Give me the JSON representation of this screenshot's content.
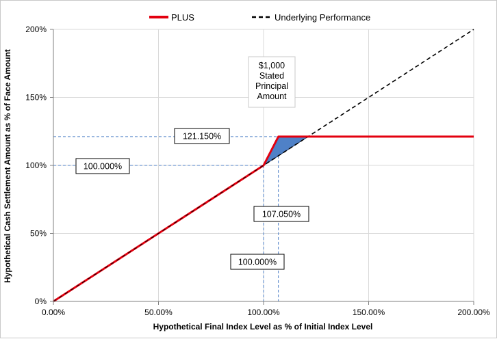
{
  "chart_data": {
    "type": "line",
    "title": "",
    "xlabel": "Hypothetical Final Index Level as % of Initial Index Level",
    "ylabel": "Hypothetical Cash Settlement Amount as % of Face Amount",
    "xlim": [
      0,
      200
    ],
    "ylim": [
      0,
      200
    ],
    "x_ticks": [
      "0.00%",
      "50.00%",
      "100.00%",
      "150.00%",
      "200.00%"
    ],
    "y_ticks": [
      "0%",
      "50%",
      "100%",
      "150%",
      "200%"
    ],
    "grid": true,
    "legend_position": "top",
    "series": [
      {
        "name": "PLUS",
        "color": "#e3000f",
        "style": "solid",
        "x": [
          0,
          100,
          107.05,
          200
        ],
        "y": [
          0,
          100,
          121.15,
          121.15
        ]
      },
      {
        "name": "Underlying Performance",
        "color": "#000000",
        "style": "dashed",
        "x": [
          0,
          200
        ],
        "y": [
          0,
          200
        ]
      }
    ],
    "shaded_region": {
      "color": "#4f81c7",
      "x": [
        100,
        107.05,
        121.15
      ],
      "y": [
        100,
        121.15,
        121.15
      ]
    },
    "reference_lines": {
      "color": "#4f81c7",
      "horizontal": [
        100,
        121.15
      ],
      "vertical": [
        100,
        107.05
      ]
    },
    "annotations": {
      "cap_level": "121.150%",
      "initial_level_y": "100.000%",
      "cap_point_x": "107.050%",
      "initial_level_x": "100.000%",
      "principal_lines": [
        "$1,000",
        "Stated",
        "Principal",
        "Amount"
      ]
    }
  }
}
